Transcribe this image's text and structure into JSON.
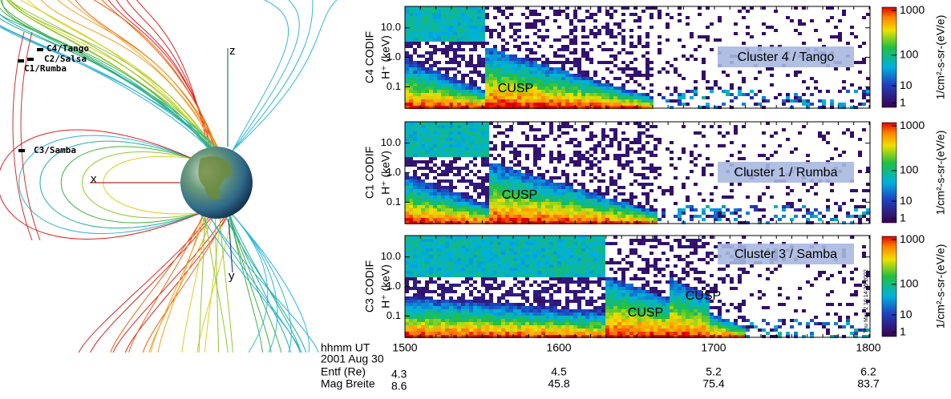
{
  "diagram": {
    "axes": {
      "z": "z",
      "x": "x",
      "y": "y"
    },
    "spacecraft": [
      "C4/Tango",
      "C2/Salsa",
      "C1/Rumba",
      "C3/Samba"
    ]
  },
  "panels": [
    {
      "instrument": "C4 CODIF",
      "ylabel": "H⁺ (keV)",
      "yticks": [
        "10.0",
        "1.0",
        "0.1"
      ],
      "cbar_ticks": [
        "1000",
        "100",
        "10",
        "1"
      ],
      "cbar_label": "1/cm²-s-sr-(eV/e)",
      "cluster": "Cluster 4 / Tango",
      "cusp": [
        "CUSP"
      ]
    },
    {
      "instrument": "C1 CODIF",
      "ylabel": "H⁺ (keV)",
      "yticks": [
        "10.0",
        "1.0",
        "0.1"
      ],
      "cbar_ticks": [
        "1000",
        "100",
        "10",
        "1"
      ],
      "cbar_label": "1/cm²-s-sr-(eV/e)",
      "cluster": "Cluster 1 / Rumba",
      "cusp": [
        "CUSP"
      ]
    },
    {
      "instrument": "C3 CODIF",
      "ylabel": "H⁺ (keV)",
      "yticks": [
        "10.0",
        "1.0",
        "0.1"
      ],
      "cbar_ticks": [
        "1000",
        "100",
        "10",
        "1"
      ],
      "cbar_label": "1/cm²-s-sr-(eV/e)",
      "cluster": "Cluster 3 / Samba",
      "cusp": [
        "CUSP",
        "CUSP"
      ],
      "stamp": "Thu May  2 16:14:35 2002"
    }
  ],
  "table": {
    "rows": [
      [
        "hhmm UT",
        "1500",
        "1600",
        "1700",
        "1800"
      ],
      [
        "2001 Aug 30"
      ],
      [
        "Entf (Re)",
        "4.3",
        "4.5",
        "5.2",
        "6.2"
      ],
      [
        "Mag Breite",
        "8.6",
        "45.8",
        "75.4",
        "83.7"
      ]
    ]
  }
}
